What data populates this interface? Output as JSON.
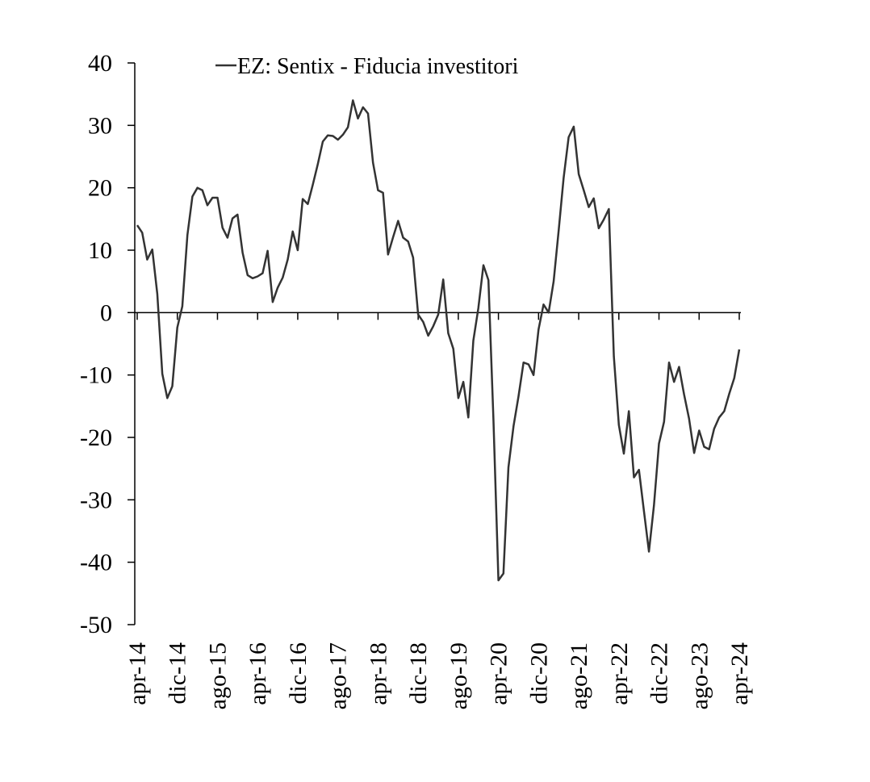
{
  "chart_data": {
    "type": "line",
    "title": "",
    "xlabel": "",
    "ylabel": "",
    "ylim": [
      -50,
      40
    ],
    "yticks": [
      40,
      30,
      20,
      10,
      0,
      -10,
      -20,
      -30,
      -40,
      -50
    ],
    "xtick_labels": [
      "apr-14",
      "dic-14",
      "ago-15",
      "apr-16",
      "dic-16",
      "ago-17",
      "apr-18",
      "dic-18",
      "ago-19",
      "apr-20",
      "dic-20",
      "ago-21",
      "apr-22",
      "dic-22",
      "ago-23",
      "apr-24"
    ],
    "legend": {
      "position": "top-center"
    },
    "grid": false,
    "color": "#333333",
    "series": [
      {
        "name": "EZ: Sentix - Fiducia investitori",
        "x": [
          "2014-04",
          "2014-05",
          "2014-06",
          "2014-07",
          "2014-08",
          "2014-09",
          "2014-10",
          "2014-11",
          "2014-12",
          "2015-01",
          "2015-02",
          "2015-03",
          "2015-04",
          "2015-05",
          "2015-06",
          "2015-07",
          "2015-08",
          "2015-09",
          "2015-10",
          "2015-11",
          "2015-12",
          "2016-01",
          "2016-02",
          "2016-03",
          "2016-04",
          "2016-05",
          "2016-06",
          "2016-07",
          "2016-08",
          "2016-09",
          "2016-10",
          "2016-11",
          "2016-12",
          "2017-01",
          "2017-02",
          "2017-03",
          "2017-04",
          "2017-05",
          "2017-06",
          "2017-07",
          "2017-08",
          "2017-09",
          "2017-10",
          "2017-11",
          "2017-12",
          "2018-01",
          "2018-02",
          "2018-03",
          "2018-04",
          "2018-05",
          "2018-06",
          "2018-07",
          "2018-08",
          "2018-09",
          "2018-10",
          "2018-11",
          "2018-12",
          "2019-01",
          "2019-02",
          "2019-03",
          "2019-04",
          "2019-05",
          "2019-06",
          "2019-07",
          "2019-08",
          "2019-09",
          "2019-10",
          "2019-11",
          "2019-12",
          "2020-01",
          "2020-02",
          "2020-03",
          "2020-04",
          "2020-05",
          "2020-06",
          "2020-07",
          "2020-08",
          "2020-09",
          "2020-10",
          "2020-11",
          "2020-12",
          "2021-01",
          "2021-02",
          "2021-03",
          "2021-04",
          "2021-05",
          "2021-06",
          "2021-07",
          "2021-08",
          "2021-09",
          "2021-10",
          "2021-11",
          "2021-12",
          "2022-01",
          "2022-02",
          "2022-03",
          "2022-04",
          "2022-05",
          "2022-06",
          "2022-07",
          "2022-08",
          "2022-09",
          "2022-10",
          "2022-11",
          "2022-12",
          "2023-01",
          "2023-02",
          "2023-03",
          "2023-04",
          "2023-05",
          "2023-06",
          "2023-07",
          "2023-08",
          "2023-09",
          "2023-10",
          "2023-11",
          "2023-12",
          "2024-01",
          "2024-02",
          "2024-03",
          "2024-04"
        ],
        "values": [
          14,
          12.8,
          8.5,
          10.1,
          3,
          -9.8,
          -13.7,
          -11.8,
          -2.4,
          1,
          12.4,
          18.6,
          20,
          19.6,
          17.2,
          18.4,
          18.4,
          13.6,
          12,
          15.1,
          15.7,
          9.6,
          6,
          5.5,
          5.8,
          6.3,
          9.9,
          1.7,
          4,
          5.6,
          8.5,
          13,
          10,
          18.2,
          17.4,
          20.5,
          23.8,
          27.4,
          28.4,
          28.3,
          27.7,
          28.5,
          29.7,
          34,
          31.1,
          32.9,
          31.9,
          24.0,
          19.6,
          19.2,
          9.3,
          12.1,
          14.7,
          12,
          11.4,
          8.8,
          -0.3,
          -1.5,
          -3.7,
          -2.2,
          -0.3,
          5.3,
          -3.3,
          -5.8,
          -13.7,
          -11.1,
          -16.8,
          -4.5,
          0.7,
          7.6,
          5.2,
          -17.1,
          -42.9,
          -41.8,
          -24.8,
          -18.2,
          -13.4,
          -8,
          -8.3,
          -10,
          -2.7,
          1.3,
          0,
          5,
          13.1,
          21.6,
          28.1,
          29.8,
          22.2,
          19.6,
          16.9,
          18.3,
          13.5,
          14.9,
          16.6,
          -7.0,
          -18.0,
          -22.6,
          -15.8,
          -26.4,
          -25.2,
          -31.8,
          -38.3,
          -30.9,
          -21.0,
          -17.5,
          -8,
          -11.1,
          -8.7,
          -13.1,
          -17.0,
          -22.5,
          -18.9,
          -21.5,
          -21.9,
          -18.6,
          -16.8,
          -15.8,
          -13.0,
          -10.5,
          -5.9
        ]
      }
    ]
  }
}
